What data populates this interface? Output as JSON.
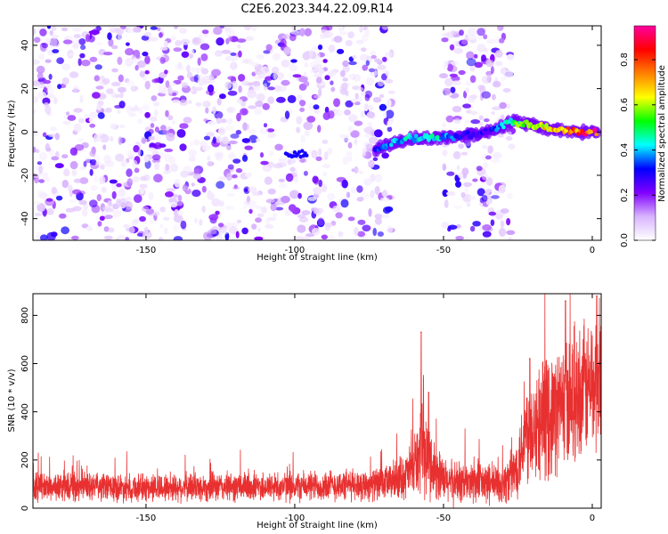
{
  "figure_title": "C2E6.2023.344.22.09.R14",
  "chart_data": [
    {
      "type": "heatmap",
      "title": "",
      "xlabel": "Height of straight line (km)",
      "ylabel": "Frequency (Hz)",
      "xlim": [
        -188,
        3
      ],
      "ylim": [
        -50,
        49
      ],
      "xticks": [
        -150,
        -100,
        -50,
        0
      ],
      "yticks": [
        -40,
        -20,
        0,
        20,
        40
      ],
      "colorbar": {
        "label": "Normalized spectral amplitude",
        "range": [
          0.0,
          0.95
        ],
        "ticks": [
          0.0,
          0.2,
          0.4,
          0.6,
          0.8
        ],
        "colors": [
          "#ffffff",
          "#d8b4fe",
          "#8000ff",
          "#0000ff",
          "#00ffff",
          "#00ff00",
          "#ffff00",
          "#ff8000",
          "#ff0000",
          "#ff00a0"
        ]
      },
      "noise": {
        "x_ranges": [
          [
            -188,
            -67
          ],
          [
            -50,
            -27
          ]
        ],
        "y_range": [
          -50,
          49
        ],
        "amplitude_range": [
          0.02,
          0.2
        ]
      },
      "ridge": {
        "description_points": [
          {
            "x": -73,
            "y": -8,
            "amp": 0.35
          },
          {
            "x": -62,
            "y": -3,
            "amp": 0.45
          },
          {
            "x": -55,
            "y": -3,
            "amp": 0.5
          },
          {
            "x": -45,
            "y": -2,
            "amp": 0.35
          },
          {
            "x": -35,
            "y": 0,
            "amp": 0.3
          },
          {
            "x": -27,
            "y": 5,
            "amp": 0.55
          },
          {
            "x": -20,
            "y": 3,
            "amp": 0.65
          },
          {
            "x": -12,
            "y": 1,
            "amp": 0.75
          },
          {
            "x": -4,
            "y": 0,
            "amp": 0.9
          },
          {
            "x": 2,
            "y": 0,
            "amp": 0.9
          }
        ],
        "weak_segment": {
          "x": [
            -103,
            -96
          ],
          "y": -10,
          "amp": 0.3
        }
      }
    },
    {
      "type": "line",
      "title": "",
      "xlabel": "Height of straight line (km)",
      "ylabel": "SNR (10 * v/v)",
      "xlim": [
        -188,
        3
      ],
      "ylim": [
        0,
        890
      ],
      "xticks": [
        -150,
        -100,
        -50,
        0
      ],
      "yticks": [
        0,
        200,
        400,
        600,
        800
      ],
      "series": [
        {
          "color": "#e83030",
          "profile": [
            {
              "x": -188,
              "base": 90,
              "spread": 70
            },
            {
              "x": -150,
              "base": 85,
              "spread": 70
            },
            {
              "x": -100,
              "base": 90,
              "spread": 75
            },
            {
              "x": -70,
              "base": 100,
              "spread": 80
            },
            {
              "x": -62,
              "base": 140,
              "spread": 120
            },
            {
              "x": -57,
              "base": 230,
              "spread": 220
            },
            {
              "x": -55,
              "base": 200,
              "spread": 180
            },
            {
              "x": -50,
              "base": 110,
              "spread": 110
            },
            {
              "x": -30,
              "base": 100,
              "spread": 100
            },
            {
              "x": -26,
              "base": 150,
              "spread": 140
            },
            {
              "x": -22,
              "base": 330,
              "spread": 260
            },
            {
              "x": -15,
              "base": 380,
              "spread": 300
            },
            {
              "x": -5,
              "base": 480,
              "spread": 320
            },
            {
              "x": 3,
              "base": 520,
              "spread": 340
            }
          ],
          "peaks": [
            {
              "x": -57.5,
              "y": 730
            },
            {
              "x": -55,
              "y": 480
            },
            {
              "x": -21,
              "y": 620
            },
            {
              "x": -9,
              "y": 860
            },
            {
              "x": 1.5,
              "y": 880
            }
          ]
        }
      ]
    }
  ]
}
